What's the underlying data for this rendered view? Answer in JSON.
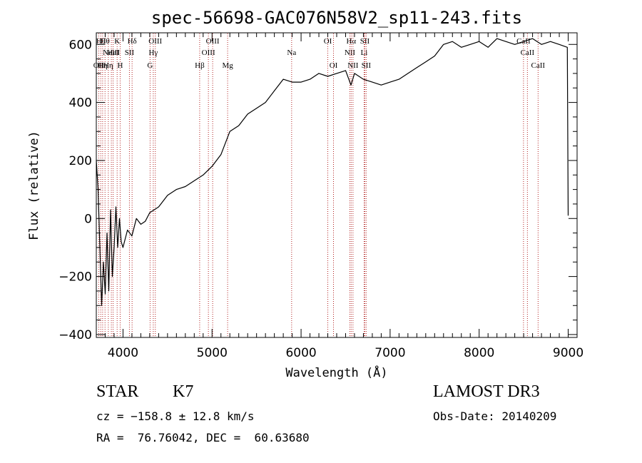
{
  "chart_data": {
    "type": "line",
    "title": "spec-56698-GAC076N58V2_sp11-243.fits",
    "xlabel": "Wavelength (Å)",
    "ylabel": "Flux (relative)",
    "xlim": [
      3700,
      9100
    ],
    "ylim": [
      -410,
      640
    ],
    "x_ticks": [
      4000,
      5000,
      6000,
      7000,
      8000,
      9000
    ],
    "y_ticks": [
      -400,
      -200,
      0,
      200,
      400,
      600
    ],
    "grid": false,
    "line_color": "#000000",
    "marker_color": "#b22222",
    "series": [
      {
        "name": "flux",
        "x": [
          3700,
          3720,
          3740,
          3760,
          3780,
          3800,
          3820,
          3840,
          3860,
          3880,
          3900,
          3920,
          3940,
          3960,
          3980,
          4000,
          4050,
          4100,
          4150,
          4200,
          4250,
          4300,
          4350,
          4400,
          4500,
          4600,
          4700,
          4800,
          4900,
          5000,
          5100,
          5200,
          5300,
          5400,
          5500,
          5600,
          5700,
          5800,
          5900,
          6000,
          6100,
          6200,
          6300,
          6400,
          6500,
          6560,
          6600,
          6700,
          6800,
          6900,
          7000,
          7100,
          7200,
          7300,
          7400,
          7500,
          7600,
          7700,
          7800,
          7900,
          8000,
          8100,
          8200,
          8300,
          8400,
          8500,
          8600,
          8700,
          8800,
          8900,
          8990,
          9000
        ],
        "y": [
          200,
          100,
          -100,
          -300,
          -150,
          -260,
          -50,
          -250,
          30,
          -200,
          -100,
          40,
          -100,
          0,
          -80,
          -100,
          -40,
          -60,
          0,
          -20,
          -10,
          20,
          30,
          40,
          80,
          100,
          110,
          130,
          150,
          180,
          220,
          300,
          320,
          360,
          380,
          400,
          440,
          480,
          470,
          470,
          480,
          500,
          490,
          500,
          510,
          460,
          500,
          480,
          470,
          460,
          470,
          480,
          500,
          520,
          540,
          560,
          600,
          610,
          590,
          600,
          610,
          590,
          620,
          610,
          600,
          610,
          620,
          600,
          610,
          600,
          590,
          10
        ]
      }
    ],
    "line_markers": [
      {
        "x": 3727,
        "label": "OII",
        "row": 3
      },
      {
        "x": 3750,
        "label": "Hθ",
        "row": 1
      },
      {
        "x": 3771,
        "label": "Hη",
        "row": 3
      },
      {
        "x": 3798,
        "label": "Hθ",
        "row": 1
      },
      {
        "x": 3835,
        "label": "Hη",
        "row": 3
      },
      {
        "x": 3869,
        "label": "NeIII",
        "row": 2
      },
      {
        "x": 3889,
        "label": "HeI",
        "row": 2
      },
      {
        "x": 3934,
        "label": "K",
        "row": 1
      },
      {
        "x": 3968,
        "label": "H",
        "row": 3
      },
      {
        "x": 4072,
        "label": "SII",
        "row": 2
      },
      {
        "x": 4102,
        "label": "Hδ",
        "row": 1
      },
      {
        "x": 4304,
        "label": "G",
        "row": 3
      },
      {
        "x": 4340,
        "label": "Hγ",
        "row": 2
      },
      {
        "x": 4363,
        "label": "OIII",
        "row": 1
      },
      {
        "x": 4861,
        "label": "Hβ",
        "row": 3
      },
      {
        "x": 4959,
        "label": "OIII",
        "row": 2
      },
      {
        "x": 5007,
        "label": "OIII",
        "row": 1
      },
      {
        "x": 5175,
        "label": "Mg",
        "row": 3
      },
      {
        "x": 5894,
        "label": "Na",
        "row": 2
      },
      {
        "x": 6300,
        "label": "OI",
        "row": 1
      },
      {
        "x": 6364,
        "label": "OI",
        "row": 3
      },
      {
        "x": 6548,
        "label": "NII",
        "row": 2
      },
      {
        "x": 6563,
        "label": "Hα",
        "row": 1
      },
      {
        "x": 6583,
        "label": "NII",
        "row": 3
      },
      {
        "x": 6708,
        "label": "Li",
        "row": 2
      },
      {
        "x": 6716,
        "label": "SII",
        "row": 1
      },
      {
        "x": 6731,
        "label": "SII",
        "row": 3
      },
      {
        "x": 8498,
        "label": "CaII",
        "row": 1
      },
      {
        "x": 8542,
        "label": "CaII",
        "row": 2
      },
      {
        "x": 8662,
        "label": "CaII",
        "row": 3
      }
    ]
  },
  "info": {
    "object_class": "STAR",
    "subclass": "K7",
    "cz": "cz = −158.8 ± 12.8 km/s",
    "radec": "RA =  76.76042, DEC =  60.63680",
    "survey": "LAMOST DR3",
    "obs_date": "Obs-Date: 20140209"
  }
}
